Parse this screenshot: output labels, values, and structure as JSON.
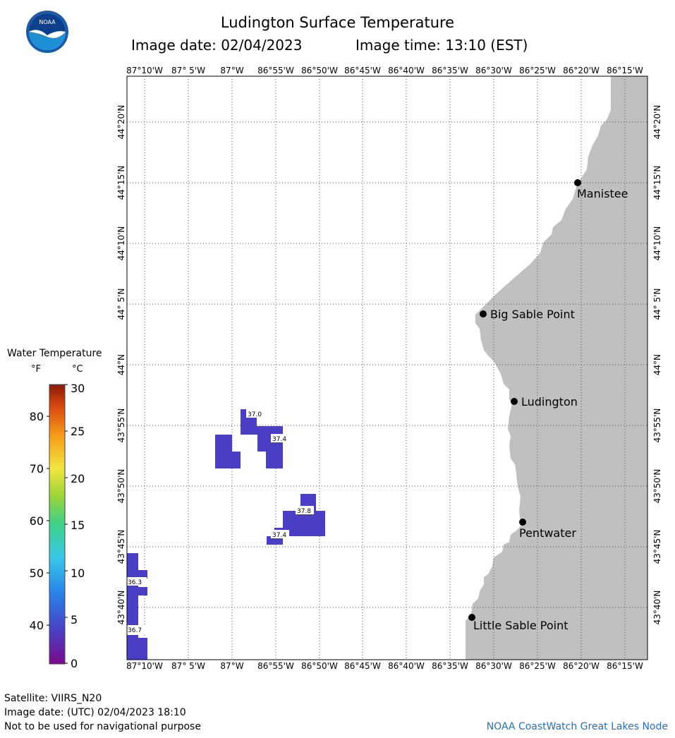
{
  "header": {
    "title": "Ludington Surface Temperature",
    "image_date": "Image date: 02/04/2023",
    "image_time": "Image time: 13:10 (EST)",
    "logo_text": "NOAA"
  },
  "axes": {
    "lon_ticks": [
      "87°10'W",
      "87° 5'W",
      "87°W",
      "86°55'W",
      "86°50'W",
      "86°45'W",
      "86°40'W",
      "86°35'W",
      "86°30'W",
      "86°25'W",
      "86°20'W",
      "86°15'W"
    ],
    "lat_ticks": [
      "44°20'N",
      "44°15'N",
      "44°10'N",
      "44° 5'N",
      "44°N",
      "43°55'N",
      "43°50'N",
      "43°45'N",
      "43°40'N"
    ]
  },
  "places": [
    {
      "name": "Manistee"
    },
    {
      "name": "Big Sable Point"
    },
    {
      "name": "Ludington"
    },
    {
      "name": "Pentwater"
    },
    {
      "name": "Little Sable Point"
    }
  ],
  "temperature_labels": [
    "37.0",
    "37.4",
    "37.8",
    "37.4",
    "36.3",
    "36.7"
  ],
  "legend": {
    "title": "Water Temperature",
    "unit_f": "°F",
    "unit_c": "°C",
    "f_ticks": [
      "80",
      "70",
      "60",
      "50",
      "40"
    ],
    "c_ticks": [
      "30",
      "25",
      "20",
      "15",
      "10",
      "5",
      "0"
    ]
  },
  "footer": {
    "satellite": "Satellite: VIIRS_N20",
    "utc_date": "Image date: (UTC) 02/04/2023  18:10",
    "disclaimer": "Not to be used for navigational purpose",
    "credit": "NOAA CoastWatch Great Lakes Node"
  },
  "colors": {
    "land": "#c0c0c0",
    "data_pixel": "#4a3fc4",
    "grid": "#555555",
    "credit": "#2a6fb4"
  }
}
